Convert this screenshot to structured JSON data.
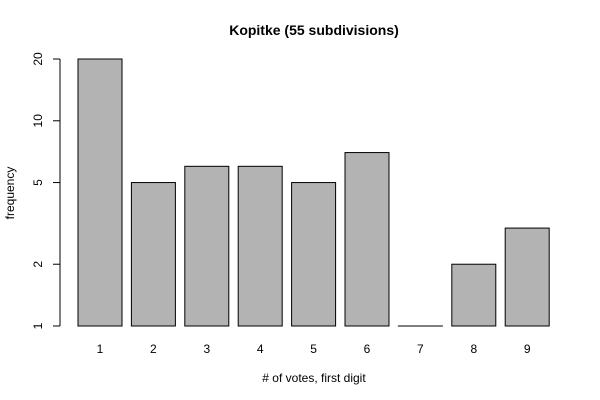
{
  "chart_data": {
    "type": "bar",
    "title": "Kopitke (55 subdivisions)",
    "xlabel": "# of votes, first digit",
    "ylabel": "frequency",
    "y_scale": "log",
    "ylim": [
      1,
      20
    ],
    "y_ticks": [
      1,
      2,
      5,
      10,
      20
    ],
    "grid": false,
    "categories": [
      "1",
      "2",
      "3",
      "4",
      "5",
      "6",
      "7",
      "8",
      "9"
    ],
    "values": [
      20,
      5,
      6,
      6,
      5,
      7,
      1,
      2,
      3
    ],
    "bar_color": "#b3b3b3",
    "bar_border_color": "#000000"
  }
}
